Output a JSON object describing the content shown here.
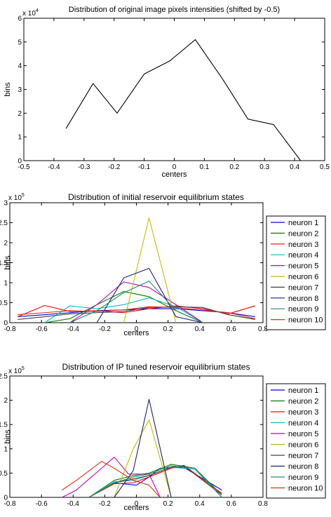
{
  "chart_data": [
    {
      "type": "line",
      "title": "Distribution of original image pixels intensities (shifted by -0.5)",
      "xlabel": "centers",
      "ylabel": "bins",
      "exponent_label": "x 10",
      "exponent_power": "4",
      "xlim": [
        -0.5,
        0.5
      ],
      "ylim": [
        0,
        6
      ],
      "xticks": [
        "-0.5",
        "-0.4",
        "-0.3",
        "-0.2",
        "-0.1",
        "0",
        "0.1",
        "0.2",
        "0.3",
        "0.4",
        "0.5"
      ],
      "yticks": [
        "0",
        "1",
        "2",
        "3",
        "4",
        "5",
        "6"
      ],
      "grid": false,
      "legend": null,
      "series": [
        {
          "color": "#000000",
          "x": [
            -0.36,
            -0.27,
            -0.19,
            -0.1,
            -0.015,
            0.07,
            0.16,
            0.245,
            0.33,
            0.42
          ],
          "y": [
            1.35,
            3.25,
            2.0,
            3.65,
            4.2,
            5.1,
            3.45,
            1.75,
            1.52,
            0.0
          ]
        }
      ]
    },
    {
      "type": "line",
      "title": "Distribution of initial reservoir equilibrium states",
      "xlabel": "centers",
      "ylabel": "bins",
      "exponent_label": "x 10",
      "exponent_power": "5",
      "xlim": [
        -0.8,
        0.8
      ],
      "ylim": [
        0,
        3
      ],
      "xticks": [
        "-0.8",
        "-0.6",
        "-0.4",
        "-0.2",
        "0",
        "0.2",
        "0.4",
        "0.6",
        "0.8"
      ],
      "yticks": [
        "0",
        "0.5",
        "1",
        "1.5",
        "2",
        "2.5",
        "3"
      ],
      "grid": false,
      "legend": "right",
      "series": [
        {
          "name": "neuron 1",
          "color": "#0000ff",
          "x": [
            -0.75,
            -0.58,
            -0.42,
            -0.25,
            -0.08,
            0.08,
            0.25,
            0.42,
            0.58,
            0.75
          ],
          "y": [
            0.15,
            0.2,
            0.25,
            0.3,
            0.32,
            0.35,
            0.35,
            0.3,
            0.25,
            0.15
          ]
        },
        {
          "name": "neuron 2",
          "color": "#008000",
          "x": [
            -0.58,
            -0.42,
            -0.25,
            -0.08,
            0.08,
            0.25,
            0.42
          ],
          "y": [
            0.0,
            0.1,
            0.45,
            0.78,
            0.65,
            0.3,
            0.0
          ]
        },
        {
          "name": "neuron 3",
          "color": "#ff0000",
          "x": [
            -0.75,
            -0.58,
            -0.42,
            -0.25,
            -0.08,
            0.08,
            0.25,
            0.42,
            0.58,
            0.75
          ],
          "y": [
            0.15,
            0.43,
            0.28,
            0.3,
            0.25,
            0.35,
            0.42,
            0.35,
            0.22,
            0.42
          ]
        },
        {
          "name": "neuron 4",
          "color": "#00bfbf",
          "x": [
            -0.58,
            -0.42,
            -0.25,
            -0.08,
            0.08,
            0.25,
            0.42
          ],
          "y": [
            0.0,
            0.42,
            0.35,
            0.45,
            0.62,
            0.4,
            0.0
          ]
        },
        {
          "name": "neuron 5",
          "color": "#bf00bf",
          "x": [
            -0.42,
            -0.25,
            -0.08,
            0.08,
            0.25,
            0.42
          ],
          "y": [
            0.0,
            0.45,
            1.02,
            0.88,
            0.45,
            0.0
          ]
        },
        {
          "name": "neuron 6",
          "color": "#bfbf00",
          "x": [
            -0.08,
            0.08,
            0.25
          ],
          "y": [
            0.0,
            2.62,
            0.0
          ]
        },
        {
          "name": "neuron 7",
          "color": "#404040",
          "x": [
            -0.75,
            -0.58,
            -0.42,
            -0.25,
            -0.08,
            0.08,
            0.25,
            0.42,
            0.58,
            0.75
          ],
          "y": [
            0.08,
            0.15,
            0.22,
            0.25,
            0.28,
            0.38,
            0.4,
            0.38,
            0.2,
            0.08
          ]
        },
        {
          "name": "neuron 8",
          "color": "#1f1f7f",
          "x": [
            -0.25,
            -0.08,
            0.08,
            0.25,
            0.42
          ],
          "y": [
            0.0,
            1.12,
            1.36,
            0.15,
            0.0
          ]
        },
        {
          "name": "neuron 9",
          "color": "#208f60",
          "x": [
            -0.42,
            -0.25,
            -0.08,
            0.08,
            0.25,
            0.42
          ],
          "y": [
            0.0,
            0.3,
            0.75,
            1.04,
            0.3,
            0.0
          ]
        },
        {
          "name": "neuron 10",
          "color": "#df2f0f",
          "x": [
            -0.75,
            -0.58,
            -0.42,
            -0.25,
            -0.08,
            0.08,
            0.25,
            0.42,
            0.58,
            0.75
          ],
          "y": [
            0.2,
            0.25,
            0.3,
            0.28,
            0.32,
            0.4,
            0.38,
            0.32,
            0.25,
            0.1
          ]
        }
      ]
    },
    {
      "type": "line",
      "title": "Distribution of IP tuned reservoir equilibrium states",
      "xlabel": "centers",
      "ylabel": "bins",
      "exponent_label": "x 10",
      "exponent_power": "5",
      "xlim": [
        -0.8,
        0.8
      ],
      "ylim": [
        0,
        2.5
      ],
      "xticks": [
        "-0.8",
        "-0.6",
        "-0.4",
        "-0.2",
        "0",
        "0.2",
        "0.4",
        "0.6",
        "0.8"
      ],
      "yticks": [
        "0",
        "0.5",
        "1",
        "1.5",
        "2",
        "2.5"
      ],
      "grid": false,
      "legend": "right",
      "series": [
        {
          "name": "neuron 1",
          "color": "#0000ff",
          "x": [
            -0.3,
            -0.14,
            0.0,
            0.08,
            0.15,
            0.3,
            0.54
          ],
          "y": [
            0.0,
            0.3,
            0.25,
            0.42,
            0.6,
            0.62,
            0.15
          ]
        },
        {
          "name": "neuron 2",
          "color": "#008000",
          "x": [
            -0.3,
            -0.14,
            -0.02,
            0.08,
            0.22,
            0.37,
            0.54
          ],
          "y": [
            0.0,
            0.35,
            0.45,
            0.5,
            0.68,
            0.6,
            0.05
          ]
        },
        {
          "name": "neuron 3",
          "color": "#ff0000",
          "x": [
            -0.3,
            -0.14,
            -0.02,
            0.08,
            0.22,
            0.3,
            0.54
          ],
          "y": [
            0.0,
            0.28,
            0.3,
            0.42,
            0.6,
            0.66,
            0.08
          ]
        },
        {
          "name": "neuron 4",
          "color": "#00bfbf",
          "x": [
            -0.3,
            -0.14,
            -0.02,
            0.08,
            0.22,
            0.37,
            0.54
          ],
          "y": [
            0.0,
            0.32,
            0.35,
            0.45,
            0.62,
            0.58,
            0.0
          ]
        },
        {
          "name": "neuron 5",
          "color": "#bf00bf",
          "x": [
            -0.47,
            -0.38,
            -0.22,
            -0.14,
            -0.05,
            0.08,
            0.15
          ],
          "y": [
            0.0,
            0.15,
            0.6,
            0.83,
            0.48,
            0.48,
            0.0
          ]
        },
        {
          "name": "neuron 6",
          "color": "#bfbf00",
          "x": [
            -0.14,
            -0.02,
            0.08,
            0.22
          ],
          "y": [
            0.0,
            1.0,
            1.6,
            0.0
          ]
        },
        {
          "name": "neuron 7",
          "color": "#404040",
          "x": [
            -0.3,
            -0.14,
            -0.02,
            0.08,
            0.22,
            0.3,
            0.54
          ],
          "y": [
            0.0,
            0.3,
            0.38,
            0.45,
            0.62,
            0.65,
            0.05
          ]
        },
        {
          "name": "neuron 8",
          "color": "#1f1f7f",
          "x": [
            -0.14,
            -0.02,
            0.08,
            0.22
          ],
          "y": [
            0.0,
            0.55,
            2.02,
            0.0
          ]
        },
        {
          "name": "neuron 9",
          "color": "#208f60",
          "x": [
            -0.3,
            -0.14,
            -0.02,
            0.08,
            0.22,
            0.37,
            0.54
          ],
          "y": [
            0.0,
            0.3,
            0.42,
            0.48,
            0.65,
            0.6,
            0.0
          ]
        },
        {
          "name": "neuron 10",
          "color": "#df2f0f",
          "x": [
            -0.47,
            -0.38,
            -0.22,
            -0.14,
            -0.02,
            0.08,
            0.15
          ],
          "y": [
            0.15,
            0.35,
            0.74,
            0.6,
            0.35,
            0.25,
            0.0
          ]
        }
      ]
    }
  ]
}
